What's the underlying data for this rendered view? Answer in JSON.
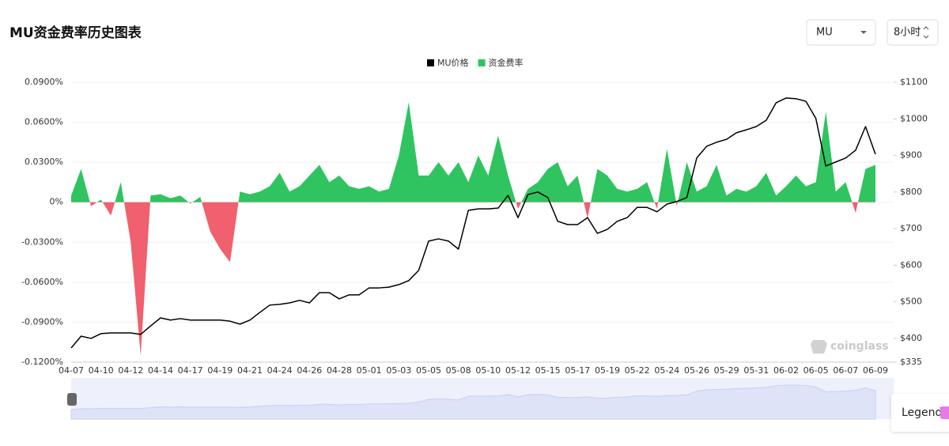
{
  "title": "MU资金费率历史图表",
  "controls": {
    "symbol": "MU",
    "interval": "8小时"
  },
  "watermark": "coinglass",
  "legend_button": "Legend",
  "chart_data": {
    "type": "line",
    "categories": [
      "04-07",
      null,
      null,
      "04-10",
      null,
      null,
      "04-12",
      null,
      null,
      "04-14",
      null,
      null,
      "04-17",
      null,
      null,
      "04-19",
      null,
      null,
      "04-21",
      null,
      null,
      "04-24",
      null,
      null,
      "04-26",
      null,
      null,
      "04-28",
      null,
      null,
      "05-01",
      null,
      null,
      "05-03",
      null,
      null,
      "05-05",
      null,
      null,
      "05-08",
      null,
      null,
      "05-10",
      null,
      null,
      "05-12",
      null,
      null,
      "05-15",
      null,
      null,
      "05-17",
      null,
      null,
      "05-19",
      null,
      null,
      "05-22",
      null,
      null,
      "05-24",
      null,
      null,
      "05-26",
      null,
      null,
      "05-29",
      null,
      null,
      "05-31",
      null,
      null,
      "06-02",
      null,
      null,
      "06-05",
      null,
      null,
      "06-07",
      null,
      null,
      "06-09"
    ],
    "series": [
      {
        "name": "MU价格",
        "color": "#000000",
        "axis": "y2",
        "values": [
          374,
          406,
          400,
          413,
          415,
          415,
          415,
          411,
          434,
          456,
          450,
          454,
          450,
          450,
          450,
          450,
          447,
          439,
          450,
          471,
          491,
          493,
          497,
          504,
          497,
          525,
          525,
          508,
          519,
          519,
          538,
          538,
          540,
          547,
          558,
          586,
          666,
          672,
          666,
          644,
          750,
          754,
          754,
          756,
          791,
          730,
          793,
          800,
          785,
          720,
          711,
          711,
          730,
          687,
          698,
          720,
          730,
          758,
          758,
          746,
          767,
          774,
          785,
          893,
          925,
          936,
          944,
          962,
          970,
          979,
          996,
          1044,
          1057,
          1055,
          1048,
          1001,
          871,
          882,
          893,
          914,
          979,
          903
        ]
      },
      {
        "name": "资金费率",
        "color": "#2fc45f",
        "negative_color": "#f0606e",
        "values": [
          0.005,
          0.025,
          -0.003,
          0.002,
          -0.01,
          0.015,
          -0.03,
          -0.115,
          0.005,
          0.006,
          0.003,
          0.005,
          -0.001,
          0.004,
          -0.022,
          -0.035,
          -0.045,
          0.008,
          0.006,
          0.008,
          0.012,
          0.022,
          0.008,
          0.012,
          0.02,
          0.028,
          0.015,
          0.02,
          0.012,
          0.01,
          0.012,
          0.008,
          0.01,
          0.035,
          0.075,
          0.02,
          0.02,
          0.03,
          0.02,
          0.03,
          0.015,
          0.035,
          0.02,
          0.05,
          0.02,
          -0.005,
          0.01,
          0.015,
          0.025,
          0.03,
          0.012,
          0.02,
          -0.012,
          0.025,
          0.02,
          0.01,
          0.008,
          0.01,
          0.015,
          -0.005,
          0.04,
          -0.003,
          0.03,
          0.008,
          0.012,
          0.028,
          0.005,
          0.01,
          0.008,
          0.012,
          0.022,
          0.005,
          0.012,
          0.02,
          0.012,
          0.015,
          0.068,
          0.008,
          0.015,
          -0.008,
          0.025,
          0.028
        ]
      }
    ],
    "ylim": [
      -0.12,
      0.09
    ],
    "yticks": [
      {
        "value": 0.09,
        "label": "0.0900%"
      },
      {
        "value": 0.06,
        "label": "0.0600%"
      },
      {
        "value": 0.03,
        "label": "0.0300%"
      },
      {
        "value": 0,
        "label": "0%"
      },
      {
        "value": -0.03,
        "label": "-0.0300%"
      },
      {
        "value": -0.06,
        "label": "-0.0600%"
      },
      {
        "value": -0.09,
        "label": "-0.0900%"
      },
      {
        "value": -0.12,
        "label": "-0.1200%"
      }
    ],
    "y2lim": [
      335,
      1100
    ],
    "y2ticks": [
      {
        "value": 1100,
        "label": "$1100"
      },
      {
        "value": 1000,
        "label": "$1000"
      },
      {
        "value": 900,
        "label": "$900"
      },
      {
        "value": 800,
        "label": "$800"
      },
      {
        "value": 700,
        "label": "$700"
      },
      {
        "value": 600,
        "label": "$600"
      },
      {
        "value": 500,
        "label": "$500"
      },
      {
        "value": 400,
        "label": "$400"
      },
      {
        "value": 335,
        "label": "$335"
      }
    ],
    "grid": true
  }
}
